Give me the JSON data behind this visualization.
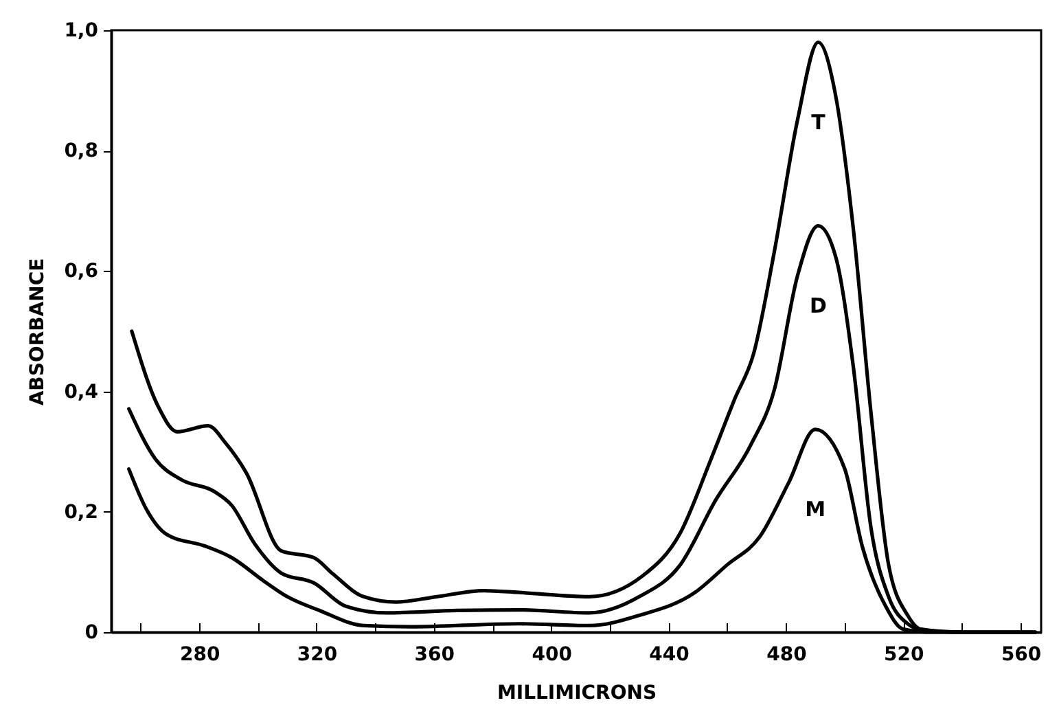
{
  "chart_data": {
    "type": "line",
    "xlabel": "MILLIMICRONS",
    "ylabel": "ABSORBANCE",
    "xlim": [
      250,
      567
    ],
    "ylim": [
      0,
      1
    ],
    "xticks": [
      {
        "value": 260,
        "label": null
      },
      280,
      {
        "value": 300,
        "label": null
      },
      320,
      {
        "value": 340,
        "label": null
      },
      360,
      {
        "value": 380,
        "label": null
      },
      400,
      {
        "value": 420,
        "label": null
      },
      440,
      {
        "value": 460,
        "label": null
      },
      480,
      {
        "value": 500,
        "label": null
      },
      520,
      {
        "value": 540,
        "label": null
      },
      560
    ],
    "yticks": [
      0,
      {
        "value": 0.2,
        "label": "0,2"
      },
      {
        "value": 0.4,
        "label": "0,4"
      },
      {
        "value": 0.6,
        "label": "0,6"
      },
      {
        "value": 0.8,
        "label": "0,8"
      },
      {
        "value": 1,
        "label": "1,0"
      }
    ],
    "grid": false,
    "legend": false,
    "marker": "none",
    "line_style": "solid",
    "series": [
      {
        "name": "T",
        "color": "#000000",
        "x": [
          257,
          266,
          272.5,
          283,
          289,
          296,
          308,
          319,
          325.5,
          336,
          347,
          361,
          377,
          389,
          413,
          431,
          444,
          454.5,
          462.5,
          469,
          476,
          484,
          491,
          497,
          503,
          509,
          515,
          521.5,
          526,
          540,
          565
        ],
        "values": [
          0.5,
          0.375,
          0.333,
          0.343,
          0.314,
          0.265,
          0.135,
          0.124,
          0.097,
          0.059,
          0.05,
          0.059,
          0.069,
          0.066,
          0.059,
          0.093,
          0.165,
          0.288,
          0.387,
          0.463,
          0.631,
          0.852,
          0.98,
          0.89,
          0.669,
          0.364,
          0.112,
          0.028,
          0.005,
          0,
          0
        ]
      },
      {
        "name": "D",
        "color": "#000000",
        "x": [
          256,
          265,
          274,
          285,
          291,
          299,
          308,
          319,
          330,
          344,
          368,
          389,
          413,
          430,
          444,
          456,
          468,
          476,
          484,
          491,
          497,
          503,
          509,
          515,
          521.5,
          527,
          540,
          565
        ],
        "values": [
          0.371,
          0.288,
          0.253,
          0.234,
          0.211,
          0.146,
          0.098,
          0.082,
          0.043,
          0.032,
          0.036,
          0.037,
          0.032,
          0.059,
          0.112,
          0.219,
          0.311,
          0.402,
          0.593,
          0.675,
          0.623,
          0.44,
          0.173,
          0.059,
          0.014,
          0.003,
          0,
          0
        ]
      },
      {
        "name": "M",
        "color": "#000000",
        "x": [
          256,
          262,
          269,
          282,
          291,
          302,
          310,
          321,
          336,
          352,
          389,
          413,
          430,
          449,
          460,
          471,
          481,
          490,
          500,
          506,
          514,
          520,
          530,
          565
        ],
        "values": [
          0.271,
          0.204,
          0.162,
          0.143,
          0.124,
          0.085,
          0.059,
          0.036,
          0.011,
          0.009,
          0.014,
          0.011,
          0.028,
          0.066,
          0.112,
          0.158,
          0.249,
          0.337,
          0.272,
          0.143,
          0.043,
          0.005,
          0,
          0
        ]
      }
    ]
  }
}
